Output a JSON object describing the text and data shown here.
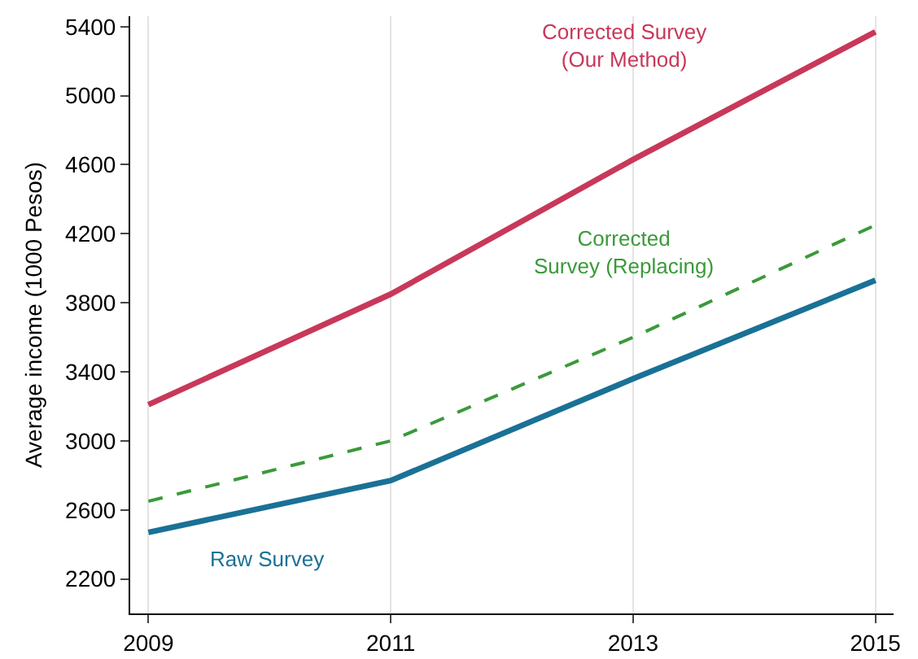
{
  "chart_data": {
    "type": "line",
    "ylabel": "Average income (1000 Pesos)",
    "x": [
      2009,
      2011,
      2013,
      2015
    ],
    "series": [
      {
        "name": "Corrected Survey\n(Our Method)",
        "color": "#c8385a",
        "values": [
          3210,
          3850,
          4630,
          5370
        ]
      },
      {
        "name": "Corrected\nSurvey (Replacing)",
        "color": "#3a9a3a",
        "values": [
          2650,
          3000,
          3600,
          4250
        ],
        "line_style": "dashed"
      },
      {
        "name": "Raw Survey",
        "color": "#1a7196",
        "values": [
          2470,
          2770,
          3360,
          3930
        ]
      }
    ],
    "xlim": [
      2008.85,
      2015.15
    ],
    "xticks": [
      2009,
      2011,
      2013,
      2015
    ],
    "ylim": [
      2000,
      5460
    ],
    "yticks": [
      2200,
      2600,
      3000,
      3400,
      3800,
      4200,
      4600,
      5000,
      5400
    ],
    "grid": "x",
    "legend": false
  }
}
